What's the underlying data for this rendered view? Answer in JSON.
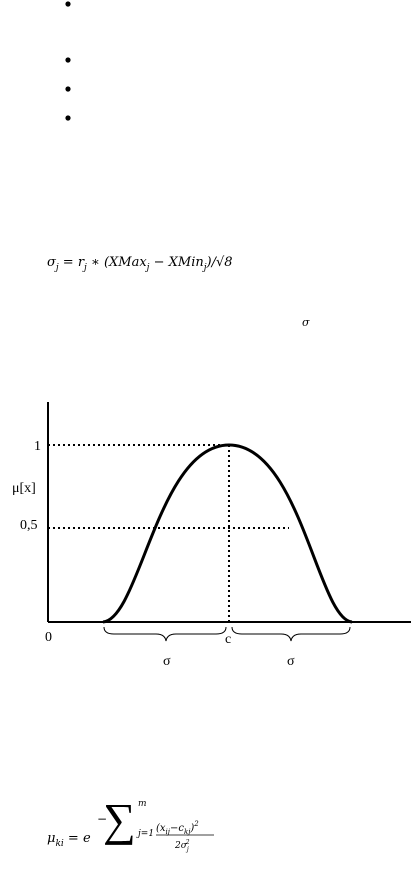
{
  "formula_1": [
    "σ",
    "j",
    " = r",
    "j",
    " ∗ (XMax",
    "j",
    " − XMin",
    "j",
    ")/√8"
  ],
  "sigma_note": "σ",
  "figure": {
    "y_top_label": "1",
    "y_axis_label": "μ[x]",
    "y_half_label": "0,5",
    "origin_label": "0",
    "center_label": "c",
    "left_width_label": "σ",
    "right_width_label": "σ"
  },
  "formula_2": [
    "μ",
    "ki",
    " = e",
    "−",
    "∑",
    "m",
    "j=1",
    "(x",
    "ij",
    "−c",
    "kj",
    ")",
    "2",
    "2σ",
    "j",
    "2"
  ]
}
